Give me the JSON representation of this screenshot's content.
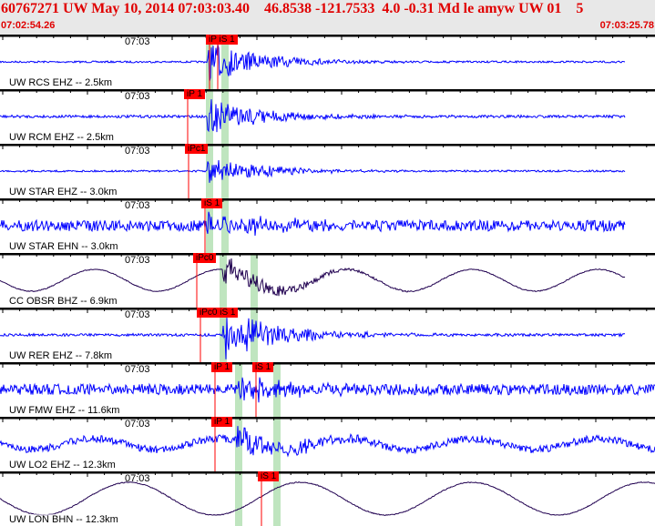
{
  "header": {
    "title": "60767271 UW May 10, 2014 07:03:03.40    46.8538 -121.7533  4.0 -0.31 Md le amyw UW 01    5",
    "start_time": "07:02:54.26",
    "end_time": "07:03:25.78"
  },
  "colors": {
    "header_text": "#e00000",
    "trace_blue": "#0000ff",
    "trace_dark": "#200050",
    "pick": "#ff0000",
    "window": "#bfe5bf"
  },
  "panels": [
    {
      "label": "UW RCS EHZ -- 2.5km",
      "time": "07:03",
      "picks": [
        "iP iS 1"
      ],
      "color": "#0000ff"
    },
    {
      "label": "UW RCM EHZ -- 2.5km",
      "time": "07:03",
      "picks": [
        "iP 1"
      ],
      "color": "#0000ff"
    },
    {
      "label": "UW STAR EHZ -- 3.0km",
      "time": "07:03",
      "picks": [
        "iPc1"
      ],
      "color": "#0000ff"
    },
    {
      "label": "UW STAR EHN -- 3.0km",
      "time": "07:03",
      "picks": [
        "iS 1"
      ],
      "color": "#0000ff"
    },
    {
      "label": "CC OBSR BHZ -- 6.9km",
      "time": "07:03",
      "picks": [
        "iPc0"
      ],
      "color": "#200050"
    },
    {
      "label": "UW RER EHZ -- 7.8km",
      "time": "07:03",
      "picks": [
        "iPc0 iS 1"
      ],
      "color": "#0000ff"
    },
    {
      "label": "UW FMW EHZ -- 11.6km",
      "time": "07:03",
      "picks": [
        "iP 1",
        "iS 1"
      ],
      "color": "#0000ff"
    },
    {
      "label": "UW LO2 EHZ -- 12.3km",
      "time": "07:03",
      "picks": [
        "iP 1"
      ],
      "color": "#0000ff"
    },
    {
      "label": "UW LON BHN -- 12.3km",
      "time": "07:03",
      "picks": [
        "iS 1"
      ],
      "color": "#200050"
    }
  ]
}
